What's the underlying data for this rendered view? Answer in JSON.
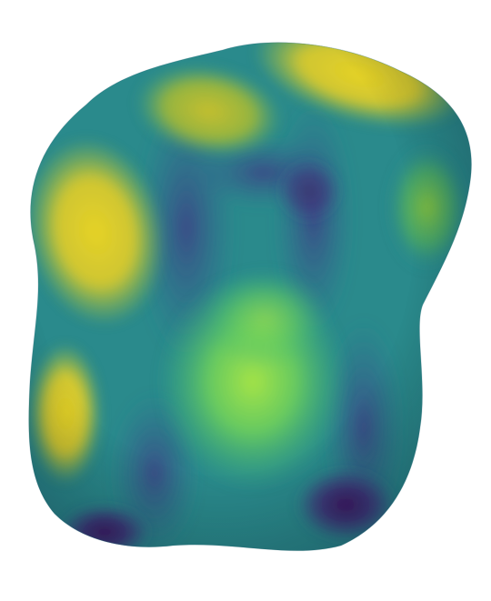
{
  "colors": {
    "background": "#ffffff",
    "base_teal": "#2a8a8c",
    "deep_purple": "#3e1d5e",
    "dark_blue_violet": "#3c4a8c",
    "yellow": "#e3cf2a",
    "olive_yellow": "#c5c22e",
    "bright_green": "#8fe04a",
    "mid_green": "#3bb67a"
  }
}
